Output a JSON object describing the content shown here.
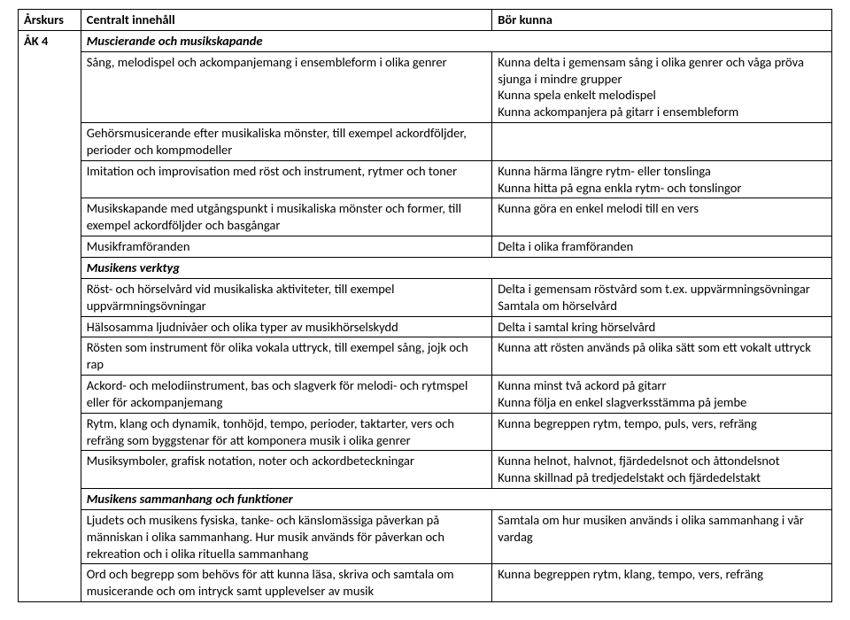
{
  "headers": {
    "col1": "Årskurs",
    "col2": "Centralt innehåll",
    "col3": "Bör kunna"
  },
  "ak": "ÅK 4",
  "section1": "Muscierande och musikskapande",
  "r1": {
    "a": "Sång, melodispel och ackompanjemang i ensembleform i olika genrer",
    "b": "Kunna delta i gemensam sång i olika genrer och våga pröva sjunga i mindre grupper\nKunna spela enkelt melodispel\nKunna ackompanjera på gitarr i ensembleform"
  },
  "r2": {
    "a": "Gehörsmusicerande efter musikaliska mönster, till exempel ackordföljder, perioder och kompmodeller",
    "b": ""
  },
  "r3": {
    "a": "Imitation och improvisation med röst och instrument, rytmer och toner",
    "b": "Kunna härma längre rytm- eller tonslinga\nKunna hitta på egna enkla rytm- och tonslingor"
  },
  "r4": {
    "a": "Musikskapande med utgångspunkt i musikaliska mönster och former, till exempel ackordföljder och basgångar",
    "b": "Kunna göra en enkel melodi till en vers"
  },
  "r5": {
    "a": "Musikframföranden",
    "b": "Delta i olika framföranden"
  },
  "section2": "Musikens verktyg",
  "r6": {
    "a": "Röst- och hörselvård vid musikaliska aktiviteter, till exempel uppvärmningsövningar",
    "b": "Delta i gemensam röstvård som t.ex. uppvärmningsövningar\nSamtala om hörselvård"
  },
  "r7": {
    "a": "Hälsosamma ljudnivåer och olika typer av musikhörselskydd",
    "b": "Delta i samtal kring hörselvård"
  },
  "r8": {
    "a": "Rösten som instrument för olika vokala uttryck, till exempel sång, jojk och rap",
    "b": "Kunna att rösten används på olika sätt som ett vokalt uttryck"
  },
  "r9": {
    "a": "Ackord- och melodiinstrument, bas och slagverk för melodi- och rytmspel eller för ackompanjemang",
    "b": "Kunna minst två ackord på gitarr\nKunna följa en enkel slagverksstämma på jembe"
  },
  "r10": {
    "a": "Rytm, klang och dynamik, tonhöjd, tempo, perioder, taktarter, vers och refräng som byggstenar för att komponera musik i olika genrer",
    "b": "Kunna begreppen rytm, tempo, puls, vers, refräng"
  },
  "r11": {
    "a": "Musiksymboler, grafisk notation, noter och ackordbeteckningar",
    "b": "Kunna helnot, halvnot, fjärdedelsnot och åttondelsnot\nKunna skillnad på tredjedelstakt och fjärdedelstakt"
  },
  "section3": "Musikens sammanhang och funktioner",
  "r12": {
    "a": "Ljudets och musikens fysiska, tanke- och känslomässiga påverkan på människan i olika sammanhang. Hur musik används för påverkan och rekreation och i olika rituella sammanhang",
    "b": "Samtala om hur musiken används i olika sammanhang i vår vardag"
  },
  "r13": {
    "a": "Ord och begrepp som behövs för att kunna läsa, skriva och samtala om musicerande och om intryck samt upplevelser av musik",
    "b": "Kunna begreppen rytm, klang, tempo, vers, refräng"
  }
}
